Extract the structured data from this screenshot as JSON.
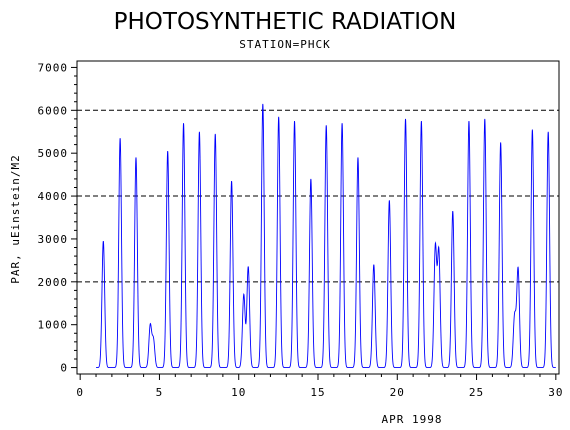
{
  "chart_data": {
    "type": "line",
    "title": "PHOTOSYNTHETIC RADIATION",
    "subtitle": "STATION=PHCK",
    "xlabel": "APR 1998",
    "ylabel": "PAR, uEinstein/M2",
    "xlim": [
      -0.2,
      30.2
    ],
    "ylim": [
      -150,
      7150
    ],
    "x_ticks": [
      0,
      5,
      10,
      15,
      20,
      25,
      30
    ],
    "y_ticks": [
      0,
      1000,
      2000,
      3000,
      4000,
      5000,
      6000,
      7000
    ],
    "reference_lines": [
      2000,
      4000,
      6000
    ],
    "grid": false,
    "line_color": "#0000ff",
    "series": [
      {
        "daily_peaks": [
          {
            "day": 1,
            "peaks": [
              [
                1.46,
                2950
              ]
            ]
          },
          {
            "day": 2,
            "peaks": [
              [
                2.52,
                5350
              ]
            ]
          },
          {
            "day": 3,
            "peaks": [
              [
                3.52,
                4900
              ]
            ]
          },
          {
            "day": 4,
            "peaks": [
              [
                4.42,
                980
              ],
              [
                4.62,
                650
              ]
            ]
          },
          {
            "day": 5,
            "peaks": [
              [
                5.52,
                5050
              ]
            ]
          },
          {
            "day": 6,
            "peaks": [
              [
                6.52,
                5700
              ]
            ]
          },
          {
            "day": 7,
            "peaks": [
              [
                7.52,
                5500
              ]
            ]
          },
          {
            "day": 8,
            "peaks": [
              [
                8.52,
                5450
              ]
            ]
          },
          {
            "day": 9,
            "peaks": [
              [
                9.55,
                4350
              ]
            ]
          },
          {
            "day": 10,
            "peaks": [
              [
                10.32,
                1700
              ],
              [
                10.6,
                2350
              ]
            ]
          },
          {
            "day": 11,
            "peaks": [
              [
                11.52,
                6150
              ]
            ]
          },
          {
            "day": 12,
            "peaks": [
              [
                12.52,
                5850
              ]
            ]
          },
          {
            "day": 13,
            "peaks": [
              [
                13.52,
                5750
              ]
            ]
          },
          {
            "day": 14,
            "peaks": [
              [
                14.55,
                4400
              ]
            ]
          },
          {
            "day": 15,
            "peaks": [
              [
                15.52,
                5650
              ]
            ]
          },
          {
            "day": 16,
            "peaks": [
              [
                16.52,
                5700
              ]
            ]
          },
          {
            "day": 17,
            "peaks": [
              [
                17.52,
                4900
              ]
            ]
          },
          {
            "day": 18,
            "peaks": [
              [
                18.52,
                2400
              ]
            ]
          },
          {
            "day": 19,
            "peaks": [
              [
                19.5,
                3900
              ]
            ]
          },
          {
            "day": 20,
            "peaks": [
              [
                20.52,
                5800
              ]
            ]
          },
          {
            "day": 21,
            "peaks": [
              [
                21.52,
                5750
              ]
            ]
          },
          {
            "day": 22,
            "peaks": [
              [
                22.4,
                2800
              ],
              [
                22.62,
                2700
              ]
            ]
          },
          {
            "day": 23,
            "peaks": [
              [
                23.5,
                3650
              ]
            ]
          },
          {
            "day": 24,
            "peaks": [
              [
                24.52,
                5750
              ]
            ]
          },
          {
            "day": 25,
            "peaks": [
              [
                25.52,
                5800
              ]
            ]
          },
          {
            "day": 26,
            "peaks": [
              [
                26.52,
                5250
              ]
            ]
          },
          {
            "day": 27,
            "peaks": [
              [
                27.4,
                1200
              ],
              [
                27.62,
                2300
              ]
            ]
          },
          {
            "day": 28,
            "peaks": [
              [
                28.52,
                5550
              ]
            ]
          },
          {
            "day": 29,
            "peaks": [
              [
                29.52,
                5500
              ]
            ]
          }
        ]
      }
    ]
  }
}
